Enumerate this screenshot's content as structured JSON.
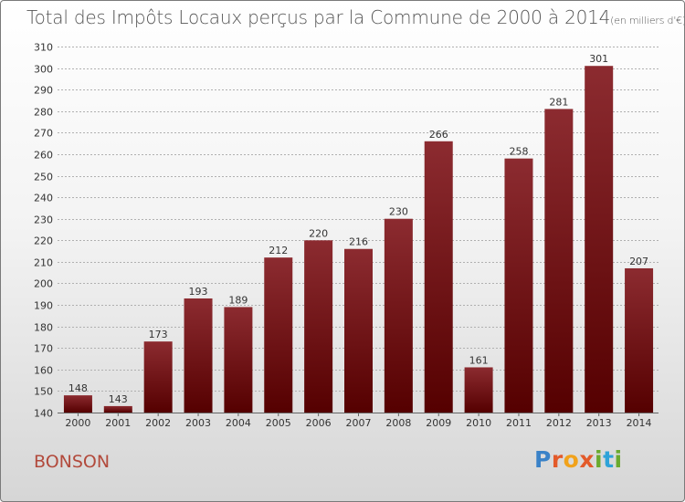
{
  "header": {
    "title": "Total des Impôts Locaux perçus par la Commune de 2000 à 2014",
    "unit": "(en milliers d'€)"
  },
  "footer": {
    "commune": "BONSON",
    "logo": [
      "P",
      "r",
      "o",
      "x",
      "i",
      "t",
      "i"
    ]
  },
  "colors": {
    "bar_top": "#8c2b30",
    "bar_bottom": "#550000",
    "grid": "#b0b0b0",
    "axis_text": "#333333"
  },
  "chart_data": {
    "type": "bar",
    "title": "Total des Impôts Locaux perçus par la Commune de 2000 à 2014",
    "xlabel": "",
    "ylabel": "",
    "categories": [
      "2000",
      "2001",
      "2002",
      "2003",
      "2004",
      "2005",
      "2006",
      "2007",
      "2008",
      "2009",
      "2010",
      "2011",
      "2012",
      "2013",
      "2014"
    ],
    "values": [
      148,
      143,
      173,
      193,
      189,
      212,
      220,
      216,
      230,
      266,
      161,
      258,
      281,
      301,
      207
    ],
    "ylim": [
      140,
      310
    ],
    "yticks": [
      140,
      150,
      160,
      170,
      180,
      190,
      200,
      210,
      220,
      230,
      240,
      250,
      260,
      270,
      280,
      290,
      300,
      310
    ],
    "grid": true,
    "data_labels": true
  }
}
